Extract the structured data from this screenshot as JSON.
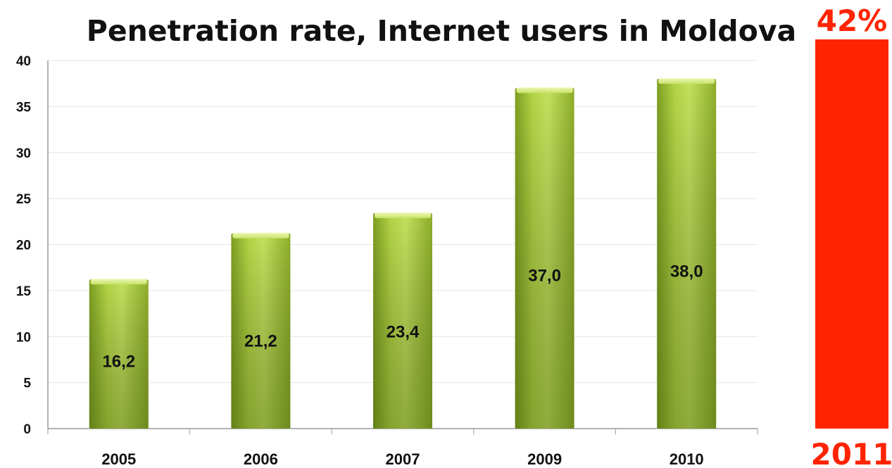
{
  "chart_data": [
    {
      "type": "bar",
      "title": "Penetration rate, Internet users in Moldova",
      "xlabel": "",
      "ylabel": "",
      "ylim": [
        0,
        40
      ],
      "yticks": [
        "0",
        "5",
        "10",
        "15",
        "20",
        "25",
        "30",
        "35",
        "40"
      ],
      "categories": [
        "2005",
        "2006",
        "2007",
        "2009",
        "2010"
      ],
      "values": [
        16.2,
        21.2,
        23.4,
        37.0,
        38.0
      ],
      "data_labels": [
        "16,2",
        "21,2",
        "23,4",
        "37,0",
        "38,0"
      ],
      "grid": true,
      "colors": {
        "bar_light": "#c8e066",
        "bar_mid": "#a3c43a",
        "bar_dark": "#6b8a1e",
        "grid": "#e6e6e6",
        "axis": "#999999"
      }
    },
    {
      "type": "bar",
      "categories": [
        "2011"
      ],
      "values": [
        42
      ],
      "data_labels": [
        "42%"
      ],
      "colors": {
        "bar": "#ff2400",
        "text": "#ff2400"
      }
    }
  ]
}
